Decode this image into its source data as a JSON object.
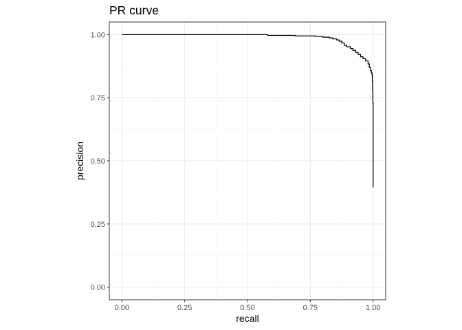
{
  "chart_data": {
    "type": "line",
    "title": "PR curve",
    "xlabel": "recall",
    "ylabel": "precision",
    "xlim": [
      0,
      1
    ],
    "ylim": [
      0,
      1
    ],
    "grid": true,
    "x_ticks": [
      0.0,
      0.25,
      0.5,
      0.75,
      1.0
    ],
    "x_tick_labels": [
      "0.00",
      "0.25",
      "0.50",
      "0.75",
      "1.00"
    ],
    "y_ticks": [
      0.0,
      0.25,
      0.5,
      0.75,
      1.0
    ],
    "y_tick_labels": [
      "0.00",
      "0.25",
      "0.50",
      "0.75",
      "1.00"
    ],
    "line_color": "#000000",
    "panel_border_color": "#333333",
    "grid_major_color": "#ebebeb",
    "grid_minor_color": "#f5f5f5",
    "series": [
      {
        "points": [
          [
            0.0,
            1.0
          ],
          [
            0.58,
            1.0
          ],
          [
            0.58,
            0.997
          ],
          [
            0.69,
            0.997
          ],
          [
            0.69,
            0.995
          ],
          [
            0.77,
            0.995
          ],
          [
            0.77,
            0.993
          ],
          [
            0.8,
            0.993
          ],
          [
            0.8,
            0.99
          ],
          [
            0.825,
            0.99
          ],
          [
            0.825,
            0.987
          ],
          [
            0.84,
            0.987
          ],
          [
            0.84,
            0.983
          ],
          [
            0.855,
            0.983
          ],
          [
            0.855,
            0.979
          ],
          [
            0.865,
            0.979
          ],
          [
            0.865,
            0.974
          ],
          [
            0.875,
            0.974
          ],
          [
            0.875,
            0.967
          ],
          [
            0.885,
            0.967
          ],
          [
            0.885,
            0.958
          ],
          [
            0.895,
            0.958
          ],
          [
            0.895,
            0.952
          ],
          [
            0.91,
            0.952
          ],
          [
            0.91,
            0.945
          ],
          [
            0.92,
            0.945
          ],
          [
            0.92,
            0.938
          ],
          [
            0.93,
            0.938
          ],
          [
            0.93,
            0.93
          ],
          [
            0.94,
            0.93
          ],
          [
            0.94,
            0.922
          ],
          [
            0.95,
            0.922
          ],
          [
            0.95,
            0.912
          ],
          [
            0.96,
            0.912
          ],
          [
            0.96,
            0.905
          ],
          [
            0.97,
            0.905
          ],
          [
            0.97,
            0.896
          ],
          [
            0.98,
            0.896
          ],
          [
            0.98,
            0.884
          ],
          [
            0.985,
            0.884
          ],
          [
            0.985,
            0.87
          ],
          [
            0.99,
            0.87
          ],
          [
            0.99,
            0.858
          ],
          [
            0.993,
            0.858
          ],
          [
            0.993,
            0.848
          ],
          [
            0.996,
            0.848
          ],
          [
            0.996,
            0.835
          ],
          [
            0.997,
            0.835
          ],
          [
            0.997,
            0.815
          ],
          [
            0.998,
            0.815
          ],
          [
            0.998,
            0.78
          ],
          [
            0.999,
            0.78
          ],
          [
            0.999,
            0.73
          ],
          [
            1.0,
            0.73
          ],
          [
            1.0,
            0.395
          ]
        ]
      }
    ]
  }
}
